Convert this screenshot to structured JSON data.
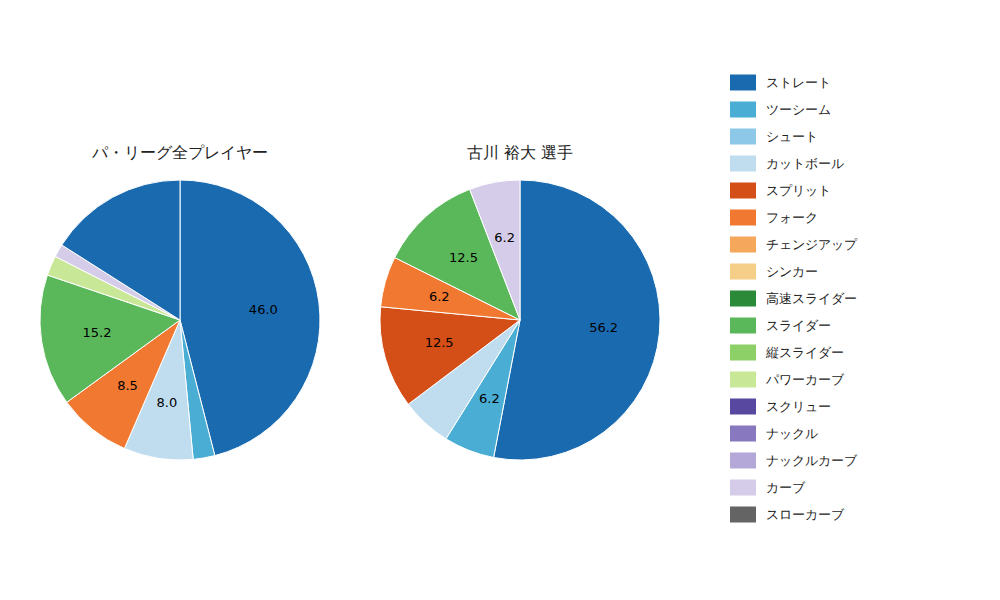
{
  "chart_data": [
    {
      "type": "pie",
      "title": "パ・リーグ全プレイヤー",
      "values": [
        46.0,
        2.5,
        8.0,
        8.5,
        15.2,
        2.3,
        1.5,
        16.0
      ],
      "value_labels": [
        "46.0",
        null,
        "8.0",
        "8.5",
        "15.2",
        null,
        null,
        null
      ],
      "colors": [
        "#1a6ab0",
        "#4aaed4",
        "#c0ddf0",
        "#f07830",
        "#5ab85a",
        "#c8e898",
        "#d4cce8",
        "#1a6ab0"
      ],
      "data_labels": true
    },
    {
      "type": "pie",
      "title": "古川 裕大 選手",
      "values": [
        56.2,
        6.2,
        6.2,
        12.5,
        6.2,
        12.5,
        6.2
      ],
      "value_labels": [
        "56.2",
        "6.2",
        null,
        "12.5",
        "6.2",
        "12.5",
        "6.2"
      ],
      "colors": [
        "#1a6ab0",
        "#4aaed4",
        "#c0ddf0",
        "#d44e18",
        "#f07830",
        "#5ab85a",
        "#d4cce8"
      ],
      "data_labels": true
    },
    {
      "type": "legend",
      "legend": "right",
      "categories": [
        "ストレート",
        "ツーシーム",
        "シュート",
        "カットボール",
        "スプリット",
        "フォーク",
        "チェンジアップ",
        "シンカー",
        "高速スライダー",
        "スライダー",
        "縦スライダー",
        "パワーカーブ",
        "スクリュー",
        "ナックル",
        "ナックルカーブ",
        "カーブ",
        "スローカーブ"
      ],
      "colors": [
        "#1a6ab0",
        "#4aaed4",
        "#8ec8e8",
        "#c0ddf0",
        "#d44e18",
        "#f07830",
        "#f5a85c",
        "#f5ce88",
        "#2a8a38",
        "#5ab85a",
        "#8ed068",
        "#c8e898",
        "#5848a0",
        "#8878c0",
        "#b4a8d8",
        "#d4cce8",
        "#646464"
      ]
    }
  ]
}
